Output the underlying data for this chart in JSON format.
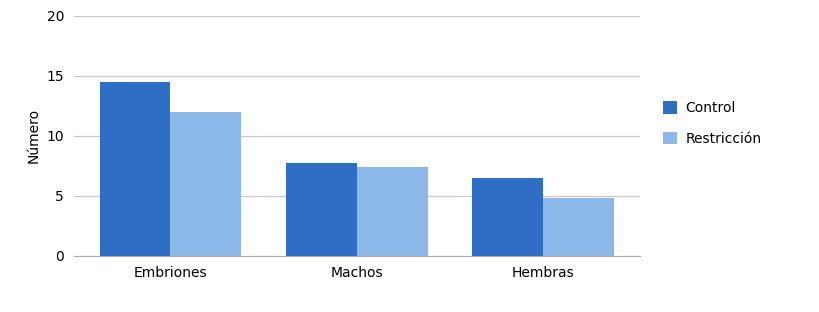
{
  "categories": [
    "Embriones",
    "Machos",
    "Hembras"
  ],
  "control_values": [
    14.5,
    7.7,
    6.5
  ],
  "restriccion_values": [
    12.0,
    7.4,
    4.8
  ],
  "control_color": "#2E6EC4",
  "restriccion_color": "#8BB8E8",
  "ylabel": "Número",
  "ylim": [
    0,
    20
  ],
  "yticks": [
    0,
    5,
    10,
    15,
    20
  ],
  "legend_control": "Control",
  "legend_restriccion": "Restricción",
  "bar_width": 0.38,
  "background_color": "#ffffff",
  "grid_color": "#c8c8c8"
}
